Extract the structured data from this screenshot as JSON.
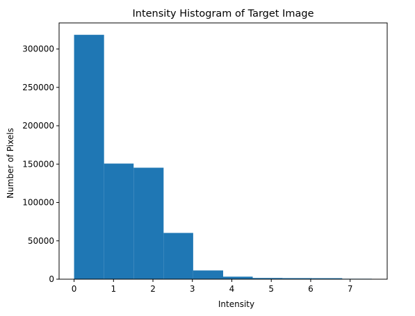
{
  "chart_data": {
    "type": "histogram",
    "title": "Intensity Histogram of Target Image",
    "xlabel": "Intensity",
    "ylabel": "Number of Pixels",
    "xlim": [
      -0.38,
      7.94
    ],
    "ylim": [
      0,
      334000
    ],
    "x_ticks": [
      0,
      1,
      2,
      3,
      4,
      5,
      6,
      7
    ],
    "x_tick_labels": [
      "0",
      "1",
      "2",
      "3",
      "4",
      "5",
      "6",
      "7"
    ],
    "y_ticks": [
      0,
      50000,
      100000,
      150000,
      200000,
      250000,
      300000
    ],
    "y_tick_labels": [
      "0",
      "50000",
      "100000",
      "150000",
      "200000",
      "250000",
      "300000"
    ],
    "bar_color": "#1f77b4",
    "grid": false,
    "bins": [
      {
        "x0": 0.0,
        "x1": 0.76,
        "count": 318500
      },
      {
        "x0": 0.76,
        "x1": 1.51,
        "count": 150700
      },
      {
        "x0": 1.51,
        "x1": 2.27,
        "count": 145300
      },
      {
        "x0": 2.27,
        "x1": 3.02,
        "count": 60300
      },
      {
        "x0": 3.02,
        "x1": 3.78,
        "count": 11400
      },
      {
        "x0": 3.78,
        "x1": 4.53,
        "count": 3300
      },
      {
        "x0": 4.53,
        "x1": 5.29,
        "count": 1600
      },
      {
        "x0": 5.29,
        "x1": 6.04,
        "count": 1400
      },
      {
        "x0": 6.04,
        "x1": 6.8,
        "count": 1300
      },
      {
        "x0": 6.8,
        "x1": 7.55,
        "count": 600
      }
    ]
  }
}
